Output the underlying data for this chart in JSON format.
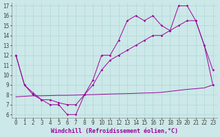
{
  "xlabel": "Windchill (Refroidissement éolien,°C)",
  "x_values": [
    0,
    1,
    2,
    3,
    4,
    5,
    6,
    7,
    8,
    9,
    10,
    11,
    12,
    13,
    14,
    15,
    16,
    17,
    18,
    19,
    20,
    21,
    22,
    23
  ],
  "line1": [
    12,
    9,
    8,
    7.5,
    7,
    7,
    6,
    6,
    8,
    9.5,
    12,
    12,
    13.5,
    15.5,
    16,
    15.5,
    16,
    15,
    14.5,
    17,
    17,
    15.5,
    13,
    10.5
  ],
  "line2": [
    12,
    9,
    8.2,
    7.5,
    7.5,
    7.2,
    7,
    7,
    8,
    9,
    10.5,
    11.5,
    12,
    12.5,
    13,
    13.5,
    14,
    14,
    14.5,
    15,
    15.5,
    15.5,
    13,
    9
  ],
  "line3_x": [
    0,
    1,
    2,
    3,
    4,
    5,
    6,
    7,
    8,
    9,
    10,
    11,
    12,
    13,
    14,
    15,
    16,
    17,
    18,
    19,
    20,
    21,
    22,
    23
  ],
  "line3_y": [
    7.8,
    7.85,
    7.9,
    7.9,
    7.92,
    7.95,
    7.95,
    7.97,
    8.0,
    8.02,
    8.05,
    8.08,
    8.1,
    8.12,
    8.15,
    8.18,
    8.2,
    8.25,
    8.35,
    8.45,
    8.55,
    8.62,
    8.7,
    9.0
  ],
  "line_color": "#990099",
  "bg_color": "#cce8e8",
  "grid_color": "#b0d8d8",
  "ylim_min": 5.7,
  "ylim_max": 17.3,
  "yticks": [
    6,
    7,
    8,
    9,
    10,
    11,
    12,
    13,
    14,
    15,
    16,
    17
  ],
  "tick_fontsize": 5.5,
  "label_fontsize": 6
}
